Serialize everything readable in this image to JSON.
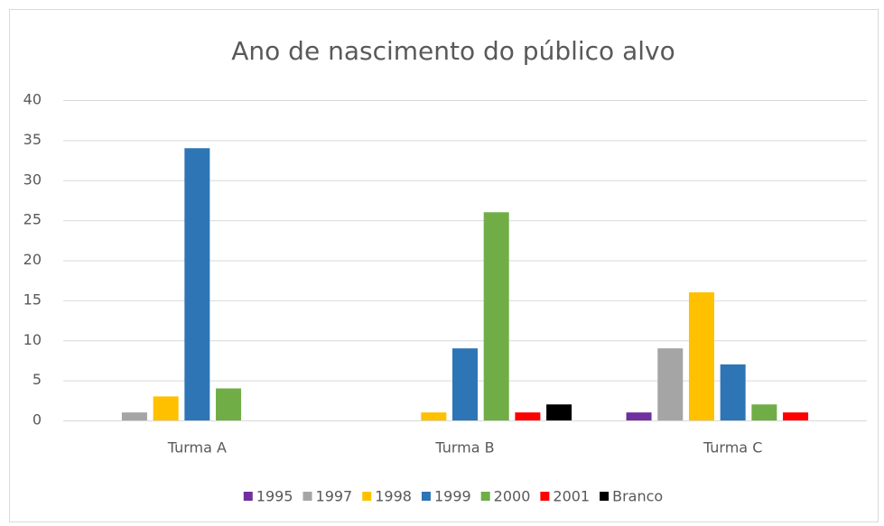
{
  "chart_data": {
    "type": "bar",
    "title": "Ano de nascimento do público alvo",
    "categories": [
      "Turma A",
      "Turma B",
      "Turma C"
    ],
    "series": [
      {
        "name": "1995",
        "color": "#7030a0",
        "values": [
          0,
          0,
          1
        ]
      },
      {
        "name": "1997",
        "color": "#a5a5a5",
        "values": [
          1,
          0,
          9
        ]
      },
      {
        "name": "1998",
        "color": "#ffc000",
        "values": [
          3,
          1,
          16
        ]
      },
      {
        "name": "1999",
        "color": "#2e75b6",
        "values": [
          34,
          9,
          7
        ]
      },
      {
        "name": "2000",
        "color": "#70ad47",
        "values": [
          4,
          26,
          2
        ]
      },
      {
        "name": "2001",
        "color": "#ff0000",
        "values": [
          0,
          1,
          1
        ]
      },
      {
        "name": "Branco",
        "color": "#000000",
        "values": [
          0,
          2,
          0
        ]
      }
    ],
    "ylim": [
      0,
      40
    ],
    "yticks": [
      0,
      5,
      10,
      15,
      20,
      25,
      30,
      35,
      40
    ],
    "grid": true,
    "legend": "bottom"
  }
}
